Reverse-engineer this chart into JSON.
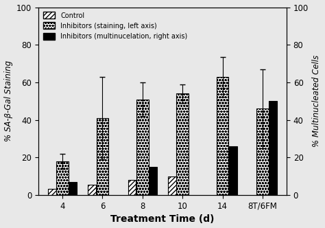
{
  "categories": [
    "4",
    "6",
    "8",
    "10",
    "14",
    "8T/6FM"
  ],
  "control_values": [
    3.5,
    5.5,
    8.0,
    10.0,
    0,
    0
  ],
  "inhibitors_staining": [
    18.0,
    41.0,
    51.0,
    54.0,
    63.0,
    46.0
  ],
  "inhibitors_staining_err": [
    4.0,
    22.0,
    9.0,
    5.0,
    10.5,
    21.0
  ],
  "inhibitors_multi": [
    7.0,
    0,
    15.0,
    0,
    26.0,
    50.0
  ],
  "ylim_left": [
    0,
    100
  ],
  "ylim_right": [
    0,
    100
  ],
  "ylabel_left": "% SA-β-Gal Staining",
  "ylabel_right": "% Multinucleated Cells",
  "xlabel": "Treatment Time (d)",
  "legend_labels": [
    "Control",
    "Inhibitors (staining, left axis)",
    "Inhibitors (multinucelation, right axis)"
  ],
  "background_color": "#f0f0f0"
}
